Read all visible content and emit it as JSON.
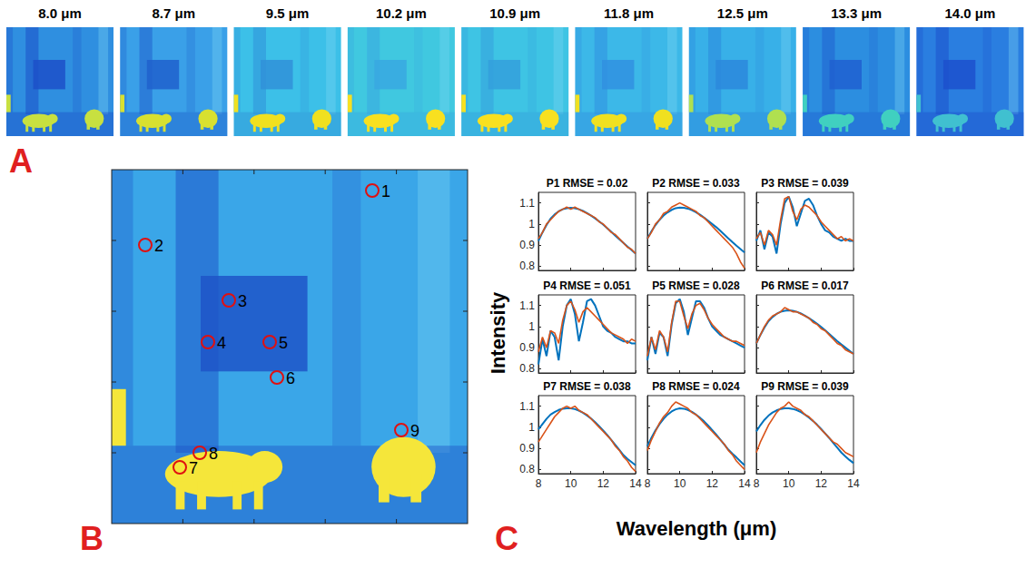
{
  "panels": {
    "A": {
      "letter": "A",
      "images": [
        "8.0 μm",
        "8.7 μm",
        "9.5 μm",
        "10.2 μm",
        "10.9 μm",
        "11.8 μm",
        "12.5 μm",
        "13.3 μm",
        "14.0 μm"
      ]
    },
    "B": {
      "letter": "B",
      "points": [
        "1",
        "2",
        "3",
        "4",
        "5",
        "6",
        "7",
        "8",
        "9"
      ]
    },
    "C": {
      "letter": "C",
      "xlabel": "Wavelength (μm)",
      "ylabel": "Intensity"
    }
  },
  "chart_data": [
    {
      "type": "line",
      "title": "P1 RMSE = 0.02",
      "tick_labels": "y",
      "grid": false,
      "x": [
        8,
        8.25,
        8.5,
        8.75,
        9,
        9.25,
        9.5,
        9.75,
        10,
        10.25,
        10.5,
        10.75,
        11,
        11.25,
        11.5,
        11.75,
        12,
        12.25,
        12.5,
        12.75,
        13,
        13.25,
        13.5,
        13.75,
        14
      ],
      "xlim": [
        8,
        14
      ],
      "xticks": [
        8,
        10,
        12,
        14
      ],
      "ylim": [
        0.78,
        1.15
      ],
      "yticks": [
        0.8,
        0.9,
        1,
        1.1
      ],
      "series": [
        {
          "color": "#0072bd",
          "values": [
            0.92,
            0.96,
            0.995,
            1.025,
            1.045,
            1.06,
            1.07,
            1.075,
            1.077,
            1.075,
            1.07,
            1.062,
            1.052,
            1.04,
            1.027,
            1.012,
            0.997,
            0.98,
            0.963,
            0.945,
            0.927,
            0.91,
            0.893,
            0.877,
            0.86
          ]
        },
        {
          "color": "#d95319",
          "values": [
            0.93,
            0.96,
            1.0,
            1.02,
            1.04,
            1.06,
            1.07,
            1.08,
            1.07,
            1.08,
            1.07,
            1.06,
            1.05,
            1.04,
            1.03,
            1.01,
            1.0,
            0.98,
            0.96,
            0.95,
            0.93,
            0.91,
            0.89,
            0.88,
            0.86
          ]
        }
      ]
    },
    {
      "type": "line",
      "title": "P2 RMSE = 0.033",
      "tick_labels": false,
      "grid": false,
      "x": [
        8,
        8.25,
        8.5,
        8.75,
        9,
        9.25,
        9.5,
        9.75,
        10,
        10.25,
        10.5,
        10.75,
        11,
        11.25,
        11.5,
        11.75,
        12,
        12.25,
        12.5,
        12.75,
        13,
        13.25,
        13.5,
        13.75,
        14
      ],
      "xlim": [
        8,
        14
      ],
      "xticks": [
        8,
        10,
        12,
        14
      ],
      "ylim": [
        0.78,
        1.15
      ],
      "yticks": [
        0.8,
        0.9,
        1,
        1.1
      ],
      "series": [
        {
          "color": "#0072bd",
          "values": [
            0.93,
            0.965,
            0.995,
            1.02,
            1.04,
            1.055,
            1.067,
            1.075,
            1.078,
            1.077,
            1.073,
            1.066,
            1.056,
            1.044,
            1.03,
            1.015,
            1.0,
            0.985,
            0.968,
            0.95,
            0.932,
            0.914,
            0.897,
            0.881,
            0.865
          ]
        },
        {
          "color": "#d95319",
          "values": [
            0.93,
            0.96,
            1.0,
            1.02,
            1.05,
            1.06,
            1.08,
            1.09,
            1.1,
            1.09,
            1.08,
            1.07,
            1.06,
            1.04,
            1.03,
            1.01,
            0.99,
            0.97,
            0.95,
            0.93,
            0.91,
            0.89,
            0.86,
            0.82,
            0.79
          ]
        }
      ]
    },
    {
      "type": "line",
      "title": "P3 RMSE = 0.039",
      "tick_labels": false,
      "grid": false,
      "x": [
        8,
        8.25,
        8.5,
        8.75,
        9,
        9.25,
        9.5,
        9.75,
        10,
        10.25,
        10.5,
        10.75,
        11,
        11.25,
        11.5,
        11.75,
        12,
        12.25,
        12.5,
        12.75,
        13,
        13.25,
        13.5,
        13.75,
        14
      ],
      "xlim": [
        8,
        14
      ],
      "xticks": [
        8,
        10,
        12,
        14
      ],
      "ylim": [
        0.78,
        1.15
      ],
      "yticks": [
        0.8,
        0.9,
        1,
        1.1
      ],
      "series": [
        {
          "color": "#0072bd",
          "values": [
            0.92,
            0.97,
            0.88,
            0.96,
            0.94,
            0.86,
            1.0,
            1.1,
            1.13,
            1.08,
            0.99,
            1.05,
            1.11,
            1.12,
            1.09,
            1.04,
            1.0,
            0.97,
            0.96,
            0.94,
            0.93,
            0.92,
            0.93,
            0.92,
            0.92
          ]
        },
        {
          "color": "#d95319",
          "values": [
            0.93,
            0.96,
            0.9,
            0.97,
            0.95,
            0.9,
            1.02,
            1.12,
            1.13,
            1.06,
            1.02,
            1.07,
            1.09,
            1.08,
            1.06,
            1.04,
            1.01,
            0.99,
            0.97,
            0.95,
            0.93,
            0.94,
            0.92,
            0.93,
            0.92
          ]
        }
      ]
    },
    {
      "type": "line",
      "title": "P4 RMSE = 0.051",
      "tick_labels": "y",
      "grid": false,
      "x": [
        8,
        8.25,
        8.5,
        8.75,
        9,
        9.25,
        9.5,
        9.75,
        10,
        10.25,
        10.5,
        10.75,
        11,
        11.25,
        11.5,
        11.75,
        12,
        12.25,
        12.5,
        12.75,
        13,
        13.25,
        13.5,
        13.75,
        14
      ],
      "xlim": [
        8,
        14
      ],
      "xticks": [
        8,
        10,
        12,
        14
      ],
      "ylim": [
        0.78,
        1.15
      ],
      "yticks": [
        0.8,
        0.9,
        1,
        1.1
      ],
      "series": [
        {
          "color": "#0072bd",
          "values": [
            0.82,
            0.94,
            0.86,
            0.98,
            0.95,
            0.84,
            1.0,
            1.1,
            1.13,
            1.06,
            0.93,
            1.02,
            1.12,
            1.13,
            1.1,
            1.05,
            1.0,
            0.98,
            0.97,
            0.95,
            0.94,
            0.93,
            0.93,
            0.92,
            0.92
          ]
        },
        {
          "color": "#d95319",
          "values": [
            0.88,
            0.95,
            0.9,
            0.98,
            0.97,
            0.92,
            1.03,
            1.1,
            1.12,
            1.08,
            1.02,
            1.07,
            1.09,
            1.07,
            1.05,
            1.03,
            1.01,
            0.99,
            0.97,
            0.96,
            0.95,
            0.94,
            0.92,
            0.94,
            0.93
          ]
        }
      ]
    },
    {
      "type": "line",
      "title": "P5 RMSE = 0.028",
      "tick_labels": false,
      "grid": false,
      "x": [
        8,
        8.25,
        8.5,
        8.75,
        9,
        9.25,
        9.5,
        9.75,
        10,
        10.25,
        10.5,
        10.75,
        11,
        11.25,
        11.5,
        11.75,
        12,
        12.25,
        12.5,
        12.75,
        13,
        13.25,
        13.5,
        13.75,
        14
      ],
      "xlim": [
        8,
        14
      ],
      "xticks": [
        8,
        10,
        12,
        14
      ],
      "ylim": [
        0.78,
        1.15
      ],
      "yticks": [
        0.8,
        0.9,
        1,
        1.1
      ],
      "series": [
        {
          "color": "#0072bd",
          "values": [
            0.84,
            0.95,
            0.87,
            0.97,
            0.95,
            0.86,
            1.01,
            1.11,
            1.13,
            1.07,
            0.96,
            1.04,
            1.12,
            1.12,
            1.09,
            1.04,
            1.0,
            0.98,
            0.96,
            0.95,
            0.94,
            0.93,
            0.92,
            0.91,
            0.9
          ]
        },
        {
          "color": "#d95319",
          "values": [
            0.86,
            0.95,
            0.89,
            0.98,
            0.95,
            0.88,
            1.02,
            1.12,
            1.12,
            1.05,
            0.99,
            1.06,
            1.1,
            1.11,
            1.08,
            1.04,
            1.01,
            0.99,
            0.97,
            0.95,
            0.94,
            0.93,
            0.93,
            0.92,
            0.91
          ]
        }
      ]
    },
    {
      "type": "line",
      "title": "P6 RMSE = 0.017",
      "tick_labels": false,
      "grid": false,
      "x": [
        8,
        8.25,
        8.5,
        8.75,
        9,
        9.25,
        9.5,
        9.75,
        10,
        10.25,
        10.5,
        10.75,
        11,
        11.25,
        11.5,
        11.75,
        12,
        12.25,
        12.5,
        12.75,
        13,
        13.25,
        13.5,
        13.75,
        14
      ],
      "xlim": [
        8,
        14
      ],
      "xticks": [
        8,
        10,
        12,
        14
      ],
      "ylim": [
        0.78,
        1.15
      ],
      "yticks": [
        0.8,
        0.9,
        1,
        1.1
      ],
      "series": [
        {
          "color": "#0072bd",
          "values": [
            0.92,
            0.96,
            0.995,
            1.025,
            1.045,
            1.06,
            1.07,
            1.075,
            1.077,
            1.075,
            1.07,
            1.062,
            1.052,
            1.04,
            1.027,
            1.013,
            0.998,
            0.982,
            0.965,
            0.948,
            0.931,
            0.915,
            0.9,
            0.885,
            0.87
          ]
        },
        {
          "color": "#d95319",
          "values": [
            0.92,
            0.96,
            1.0,
            1.03,
            1.05,
            1.06,
            1.07,
            1.09,
            1.08,
            1.07,
            1.07,
            1.06,
            1.05,
            1.04,
            1.02,
            1.01,
            0.99,
            0.98,
            0.96,
            0.94,
            0.92,
            0.91,
            0.89,
            0.88,
            0.87
          ]
        }
      ]
    },
    {
      "type": "line",
      "title": "P7 RMSE = 0.038",
      "tick_labels": true,
      "grid": false,
      "x": [
        8,
        8.25,
        8.5,
        8.75,
        9,
        9.25,
        9.5,
        9.75,
        10,
        10.25,
        10.5,
        10.75,
        11,
        11.25,
        11.5,
        11.75,
        12,
        12.25,
        12.5,
        12.75,
        13,
        13.25,
        13.5,
        13.75,
        14
      ],
      "xlim": [
        8,
        14
      ],
      "xticks": [
        8,
        10,
        12,
        14
      ],
      "ylim": [
        0.78,
        1.15
      ],
      "yticks": [
        0.8,
        0.9,
        1,
        1.1
      ],
      "series": [
        {
          "color": "#0072bd",
          "values": [
            0.99,
            1.015,
            1.04,
            1.06,
            1.072,
            1.082,
            1.088,
            1.09,
            1.09,
            1.086,
            1.079,
            1.069,
            1.056,
            1.041,
            1.024,
            1.005,
            0.985,
            0.963,
            0.94,
            0.916,
            0.892,
            0.868,
            0.85,
            0.835,
            0.82
          ]
        },
        {
          "color": "#d95319",
          "values": [
            0.93,
            0.96,
            0.99,
            1.02,
            1.05,
            1.07,
            1.09,
            1.1,
            1.09,
            1.1,
            1.08,
            1.07,
            1.06,
            1.04,
            1.02,
            1.0,
            0.98,
            0.96,
            0.94,
            0.91,
            0.89,
            0.86,
            0.84,
            0.81,
            0.79
          ]
        }
      ]
    },
    {
      "type": "line",
      "title": "P8 RMSE = 0.024",
      "tick_labels": "x",
      "grid": false,
      "x": [
        8,
        8.25,
        8.5,
        8.75,
        9,
        9.25,
        9.5,
        9.75,
        10,
        10.25,
        10.5,
        10.75,
        11,
        11.25,
        11.5,
        11.75,
        12,
        12.25,
        12.5,
        12.75,
        13,
        13.25,
        13.5,
        13.75,
        14
      ],
      "xlim": [
        8,
        14
      ],
      "xticks": [
        8,
        10,
        12,
        14
      ],
      "ylim": [
        0.78,
        1.15
      ],
      "yticks": [
        0.8,
        0.9,
        1,
        1.1
      ],
      "series": [
        {
          "color": "#0072bd",
          "values": [
            0.91,
            0.95,
            0.985,
            1.015,
            1.04,
            1.06,
            1.075,
            1.085,
            1.09,
            1.088,
            1.082,
            1.073,
            1.06,
            1.045,
            1.028,
            1.008,
            0.987,
            0.965,
            0.942,
            0.918,
            0.894,
            0.875,
            0.857,
            0.838,
            0.82
          ]
        },
        {
          "color": "#d95319",
          "values": [
            0.89,
            0.94,
            0.98,
            1.02,
            1.05,
            1.07,
            1.1,
            1.12,
            1.11,
            1.1,
            1.09,
            1.07,
            1.06,
            1.04,
            1.02,
            1.0,
            0.98,
            0.96,
            0.94,
            0.92,
            0.89,
            0.87,
            0.84,
            0.82,
            0.8
          ]
        }
      ]
    },
    {
      "type": "line",
      "title": "P9 RMSE = 0.039",
      "tick_labels": "x",
      "grid": false,
      "x": [
        8,
        8.25,
        8.5,
        8.75,
        9,
        9.25,
        9.5,
        9.75,
        10,
        10.25,
        10.5,
        10.75,
        11,
        11.25,
        11.5,
        11.75,
        12,
        12.25,
        12.5,
        12.75,
        13,
        13.25,
        13.5,
        13.75,
        14
      ],
      "xlim": [
        8,
        14
      ],
      "xticks": [
        8,
        10,
        12,
        14
      ],
      "ylim": [
        0.78,
        1.15
      ],
      "yticks": [
        0.8,
        0.9,
        1,
        1.1
      ],
      "series": [
        {
          "color": "#0072bd",
          "values": [
            0.98,
            1.01,
            1.035,
            1.055,
            1.07,
            1.08,
            1.087,
            1.09,
            1.09,
            1.087,
            1.081,
            1.072,
            1.06,
            1.046,
            1.03,
            1.012,
            0.992,
            0.971,
            0.949,
            0.926,
            0.903,
            0.88,
            0.862,
            0.845,
            0.83
          ]
        },
        {
          "color": "#d95319",
          "values": [
            0.88,
            0.93,
            0.97,
            1.01,
            1.04,
            1.07,
            1.09,
            1.1,
            1.12,
            1.1,
            1.09,
            1.08,
            1.06,
            1.05,
            1.03,
            1.01,
            0.99,
            0.97,
            0.95,
            0.93,
            0.92,
            0.9,
            0.88,
            0.87,
            0.86
          ]
        }
      ]
    }
  ]
}
